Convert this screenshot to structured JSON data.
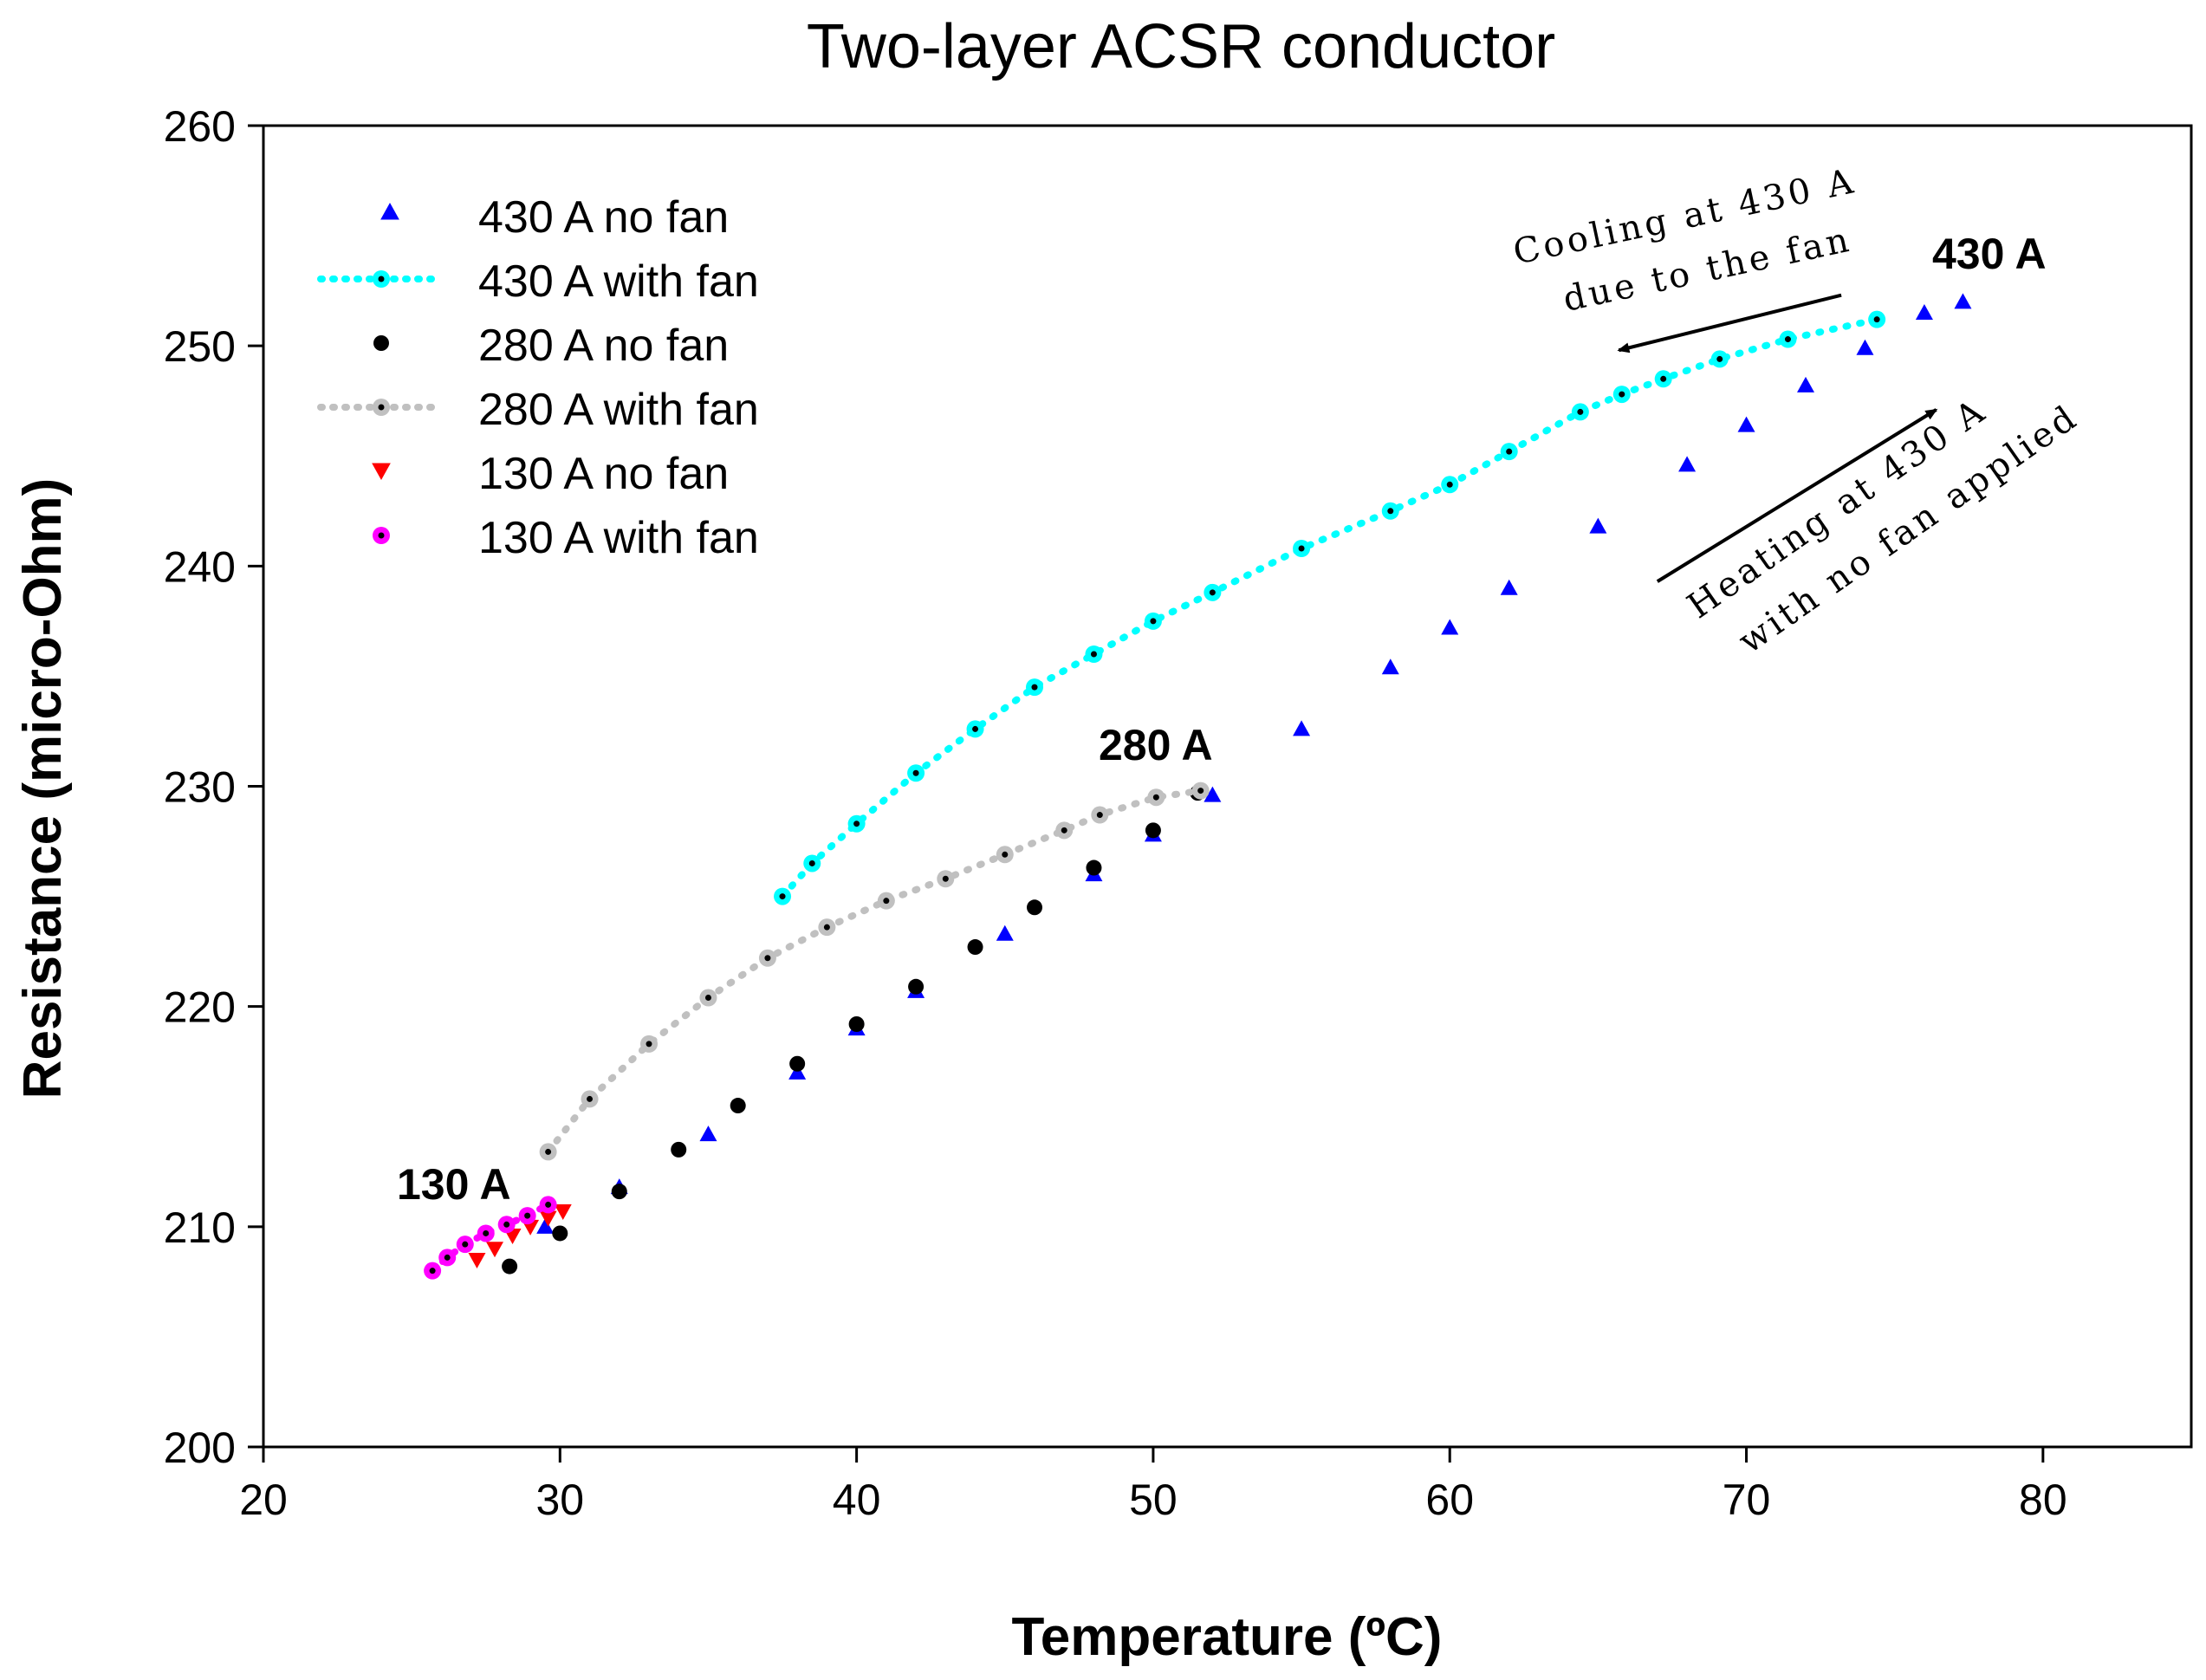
{
  "chart_data": {
    "type": "scatter",
    "title": "Two-layer ACSR conductor",
    "xlabel": "Temperature (ºC)",
    "ylabel": "Resistance (micro-Ohm)",
    "xlim": [
      20,
      85
    ],
    "ylim": [
      200,
      260
    ],
    "xticks": [
      20,
      30,
      40,
      50,
      60,
      70,
      80
    ],
    "yticks": [
      200,
      210,
      220,
      230,
      240,
      250,
      260
    ],
    "grid": false,
    "legend_position": "top-left",
    "series": [
      {
        "name": "430 A no fan",
        "marker": "triangle-up",
        "color": "#0000FF",
        "x": [
          29.5,
          32,
          35,
          38,
          40,
          42,
          45,
          48,
          50,
          52,
          55,
          58,
          60,
          62,
          65,
          68,
          70,
          72,
          74,
          76,
          77.3
        ],
        "y": [
          210.0,
          211.8,
          214.2,
          217.0,
          219.0,
          220.7,
          223.3,
          226.0,
          227.8,
          229.6,
          232.6,
          235.4,
          237.2,
          239.0,
          241.8,
          244.6,
          246.4,
          248.2,
          249.9,
          251.5,
          252.0
        ]
      },
      {
        "name": "430 A with fan",
        "marker": "circle-dot",
        "color": "#00FFFF",
        "x": [
          37.5,
          38.5,
          40,
          42,
          44,
          46,
          48,
          50,
          52,
          55,
          58,
          60,
          62,
          64.4,
          65.8,
          67.2,
          69.1,
          71.4,
          74.4
        ],
        "y": [
          225.0,
          226.5,
          228.3,
          230.6,
          232.6,
          234.5,
          236.0,
          237.5,
          238.8,
          240.8,
          242.5,
          243.7,
          245.2,
          247.0,
          247.8,
          248.5,
          249.4,
          250.3,
          251.2
        ]
      },
      {
        "name": "280 A no fan",
        "marker": "circle",
        "color": "#000000",
        "x": [
          28.3,
          30,
          32,
          34,
          36,
          38,
          40,
          42,
          44,
          46,
          48,
          50,
          51.5
        ],
        "y": [
          208.2,
          209.7,
          211.6,
          213.5,
          215.5,
          217.4,
          219.2,
          220.9,
          222.7,
          224.5,
          226.3,
          228.0,
          229.7
        ]
      },
      {
        "name": "280 A with fan",
        "marker": "circle-dot",
        "color": "#C0C0C0",
        "x": [
          29.6,
          31,
          33,
          35,
          37,
          39,
          41,
          43,
          45,
          47,
          48.2,
          50.1,
          51.6
        ],
        "y": [
          213.4,
          215.8,
          218.3,
          220.4,
          222.2,
          223.6,
          224.8,
          225.8,
          226.9,
          228.0,
          228.7,
          229.5,
          229.8
        ]
      },
      {
        "name": "130 A no fan",
        "marker": "triangle-down",
        "color": "#FF0000",
        "x": [
          27.2,
          27.8,
          28.4,
          29.0,
          29.6,
          30.1
        ],
        "y": [
          208.5,
          209.0,
          209.6,
          210.0,
          210.4,
          210.7
        ]
      },
      {
        "name": "130 A with fan",
        "marker": "circle-dot",
        "color": "#FF00FF",
        "x": [
          25.7,
          26.2,
          26.8,
          27.5,
          28.2,
          28.9,
          29.6
        ],
        "y": [
          208.0,
          208.6,
          209.2,
          209.7,
          210.1,
          210.5,
          211.0
        ]
      }
    ],
    "annotations": [
      {
        "text": "430 A",
        "x": 77,
        "y": 253.5
      },
      {
        "text": "280 A",
        "x": 48.5,
        "y": 231.5
      },
      {
        "text": "130 A",
        "x": 24.5,
        "y": 211.5
      },
      {
        "text_lines": [
          "Cooling at 430 A",
          "due to the fan"
        ],
        "arrow_from": [
          73.2,
          252.3
        ],
        "arrow_to": [
          65.7,
          249.8
        ]
      },
      {
        "text_lines": [
          "Heating at 430 A",
          "with no fan applied"
        ],
        "arrow_from": [
          67,
          239.3
        ],
        "arrow_to": [
          76.4,
          247.1
        ]
      }
    ]
  }
}
